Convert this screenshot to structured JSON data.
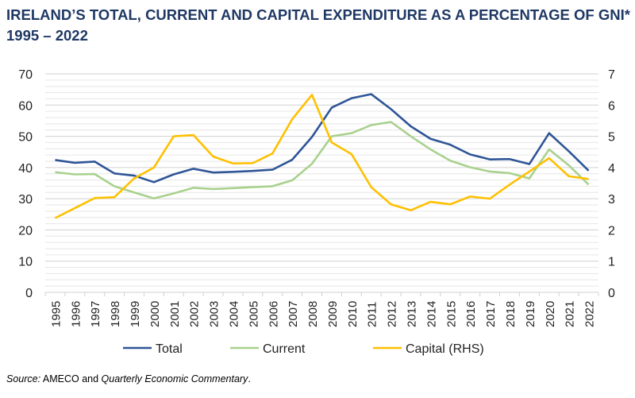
{
  "chart_data": {
    "type": "line",
    "title": "IRELAND’S TOTAL, CURRENT AND CAPITAL EXPENDITURE AS A PERCENTAGE OF GNI* 1995 – 2022",
    "categories": [
      "1995",
      "1996",
      "1997",
      "1998",
      "1999",
      "2000",
      "2001",
      "2002",
      "2003",
      "2004",
      "2005",
      "2006",
      "2007",
      "2008",
      "2009",
      "2010",
      "2011",
      "2012",
      "2013",
      "2014",
      "2015",
      "2016",
      "2017",
      "2018",
      "2019",
      "2020",
      "2021",
      "2022"
    ],
    "ylim": [
      0,
      70
    ],
    "y_ticks": [
      "0",
      "10",
      "20",
      "30",
      "40",
      "50",
      "60",
      "70"
    ],
    "y2lim": [
      0,
      7
    ],
    "y2_ticks": [
      "0",
      "1",
      "2",
      "3",
      "4",
      "5",
      "6",
      "7"
    ],
    "grid": true,
    "legend": "bottom",
    "series": [
      {
        "name": "Total",
        "axis": "left",
        "color": "#2f5597",
        "values": [
          42.4,
          41.5,
          41.9,
          38.1,
          37.4,
          35.3,
          37.8,
          39.6,
          38.4,
          38.6,
          38.9,
          39.3,
          42.5,
          49.8,
          59.2,
          62.2,
          63.5,
          58.7,
          53.2,
          49.2,
          47.3,
          44.2,
          42.6,
          42.7,
          41.1,
          51.0,
          45.2,
          39.0
        ]
      },
      {
        "name": "Current",
        "axis": "left",
        "color": "#a9d18e",
        "values": [
          38.5,
          37.8,
          37.9,
          34.0,
          32.0,
          30.1,
          31.7,
          33.5,
          33.1,
          33.4,
          33.7,
          34.0,
          35.9,
          41.2,
          50.0,
          51.0,
          53.6,
          54.6,
          50.0,
          45.8,
          42.2,
          40.1,
          38.7,
          38.2,
          36.5,
          45.8,
          40.7,
          34.5
        ]
      },
      {
        "name": "Capital (RHS)",
        "axis": "right",
        "color": "#ffc000",
        "values": [
          2.38,
          2.7,
          3.02,
          3.05,
          3.65,
          4.0,
          5.0,
          5.04,
          4.35,
          4.13,
          4.14,
          4.45,
          5.55,
          6.33,
          4.8,
          4.43,
          3.37,
          2.82,
          2.63,
          2.9,
          2.82,
          3.07,
          3.0,
          3.45,
          3.87,
          4.3,
          3.72,
          3.63
        ]
      }
    ]
  },
  "source": {
    "label": "Source:",
    "part1": "AMECO and ",
    "part2": "Quarterly Economic Commentary",
    "part3": "."
  }
}
